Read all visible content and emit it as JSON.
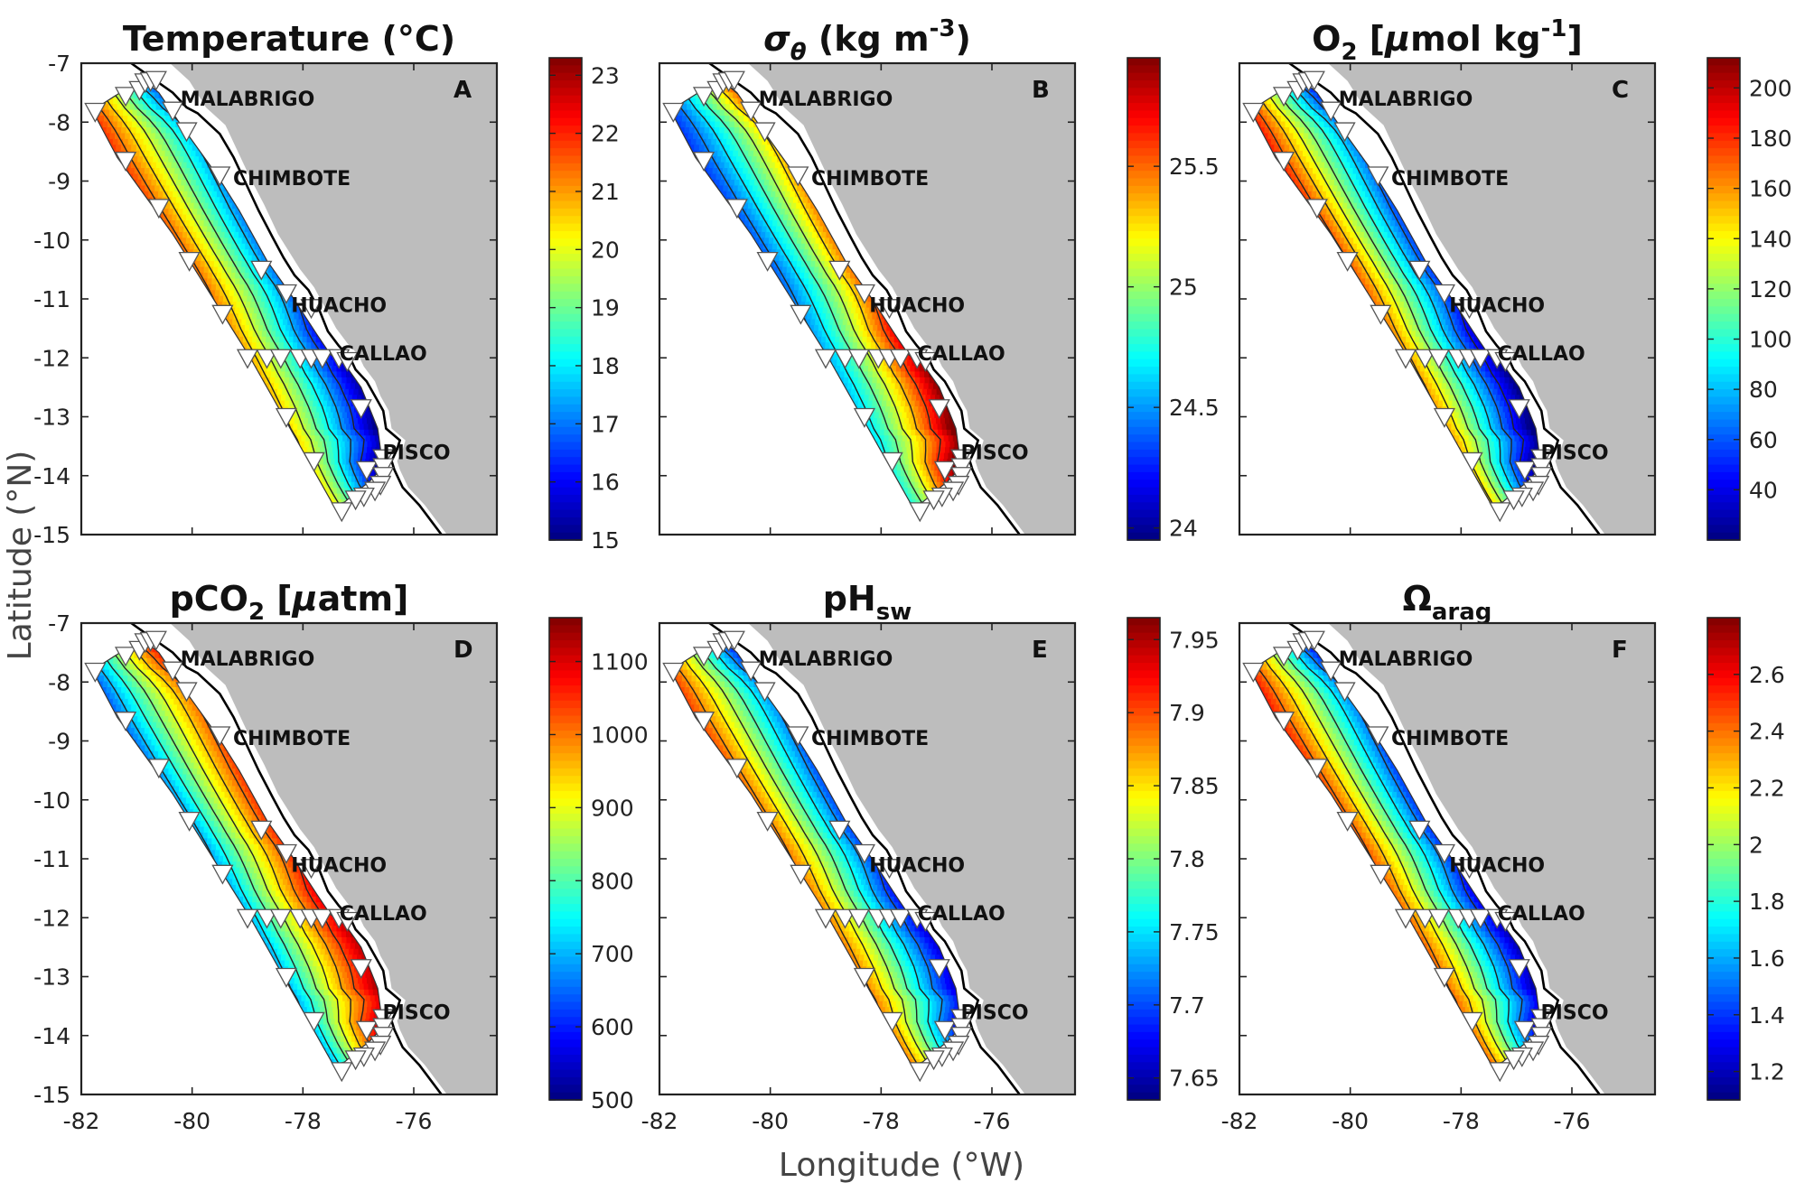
{
  "figure": {
    "xlabel": "Longitude (°W)",
    "ylabel": "Latitude (°N)"
  },
  "chart_data": [
    {
      "id": "A",
      "type": "heatmap",
      "letter": "A",
      "title": "Temperature (°C)",
      "title_parts": [
        {
          "t": "Temperature (°C)"
        }
      ],
      "xlim": [
        -82,
        -74.5
      ],
      "ylim": [
        -15,
        -7
      ],
      "xticks": [
        "-82",
        "-80",
        "-78",
        "-76"
      ],
      "yticks": [
        "-7",
        "-8",
        "-9",
        "-10",
        "-11",
        "-12",
        "-13",
        "-14",
        "-15"
      ],
      "colorbar": {
        "min": 15,
        "max": 23.3,
        "ticks": [
          "15",
          "16",
          "17",
          "18",
          "19",
          "20",
          "21",
          "22",
          "23"
        ],
        "tick_values": [
          15,
          16,
          17,
          18,
          19,
          20,
          21,
          22,
          23
        ]
      },
      "field": {
        "offshore": 22.5,
        "nearshore": 16,
        "south_shift": -2.5,
        "rbias": 0.1,
        "nlevels": 9
      },
      "cities": [
        "MALABRIGO",
        "CHIMBOTE",
        "HUACHO",
        "CALLAO",
        "PISCO"
      ]
    },
    {
      "id": "B",
      "type": "heatmap",
      "letter": "B",
      "title": "σθ (kg m-3)",
      "title_parts": [
        {
          "t": "σ",
          "italic": true
        },
        {
          "t": "θ",
          "italic": true,
          "sub": true
        },
        {
          "t": " (kg m"
        },
        {
          "t": "-3",
          "sup": true
        },
        {
          "t": ")"
        }
      ],
      "xlim": [
        -82,
        -74.5
      ],
      "ylim": [
        -15,
        -7
      ],
      "xticks": [
        "-82",
        "-80",
        "-78",
        "-76"
      ],
      "yticks": [
        "-7",
        "-8",
        "-9",
        "-10",
        "-11",
        "-12",
        "-13",
        "-14",
        "-15"
      ],
      "colorbar": {
        "min": 23.95,
        "max": 25.95,
        "ticks": [
          "24",
          "24.5",
          "25",
          "25.5"
        ],
        "tick_values": [
          24,
          24.5,
          25,
          25.5
        ]
      },
      "field": {
        "offshore": 24.2,
        "nearshore": 25.75,
        "south_shift": 0.7,
        "rbias": 0.3,
        "nlevels": 8
      },
      "cities": [
        "MALABRIGO",
        "CHIMBOTE",
        "HUACHO",
        "CALLAO",
        "PISCO"
      ]
    },
    {
      "id": "C",
      "type": "heatmap",
      "letter": "C",
      "title": "O2 [μmol kg-1]",
      "title_parts": [
        {
          "t": "O"
        },
        {
          "t": "2",
          "sub": true
        },
        {
          "t": " ["
        },
        {
          "t": "μ",
          "italic": true
        },
        {
          "t": "mol kg"
        },
        {
          "t": "-1",
          "sup": true
        },
        {
          "t": "]"
        }
      ],
      "xlim": [
        -82,
        -74.5
      ],
      "ylim": [
        -15,
        -7
      ],
      "xticks": [
        "-82",
        "-80",
        "-78",
        "-76"
      ],
      "yticks": [
        "-7",
        "-8",
        "-9",
        "-10",
        "-11",
        "-12",
        "-13",
        "-14",
        "-15"
      ],
      "colorbar": {
        "min": 20,
        "max": 212,
        "ticks": [
          "40",
          "60",
          "80",
          "100",
          "120",
          "140",
          "160",
          "180",
          "200"
        ],
        "tick_values": [
          40,
          60,
          80,
          100,
          120,
          140,
          160,
          180,
          200
        ]
      },
      "field": {
        "offshore": 205,
        "nearshore": 30,
        "south_shift": -50,
        "rbias": 0,
        "nlevels": 10
      },
      "cities": [
        "MALABRIGO",
        "CHIMBOTE",
        "HUACHO",
        "CALLAO",
        "PISCO"
      ]
    },
    {
      "id": "D",
      "type": "heatmap",
      "letter": "D",
      "title": "pCO2 [μatm]",
      "title_parts": [
        {
          "t": "pCO"
        },
        {
          "t": "2",
          "sub": true
        },
        {
          "t": " ["
        },
        {
          "t": "μ",
          "italic": true
        },
        {
          "t": "atm]"
        }
      ],
      "xlim": [
        -82,
        -74.5
      ],
      "ylim": [
        -15,
        -7
      ],
      "xticks": [
        "-82",
        "-80",
        "-78",
        "-76"
      ],
      "yticks": [
        "-7",
        "-8",
        "-9",
        "-10",
        "-11",
        "-12",
        "-13",
        "-14",
        "-15"
      ],
      "colorbar": {
        "min": 500,
        "max": 1160,
        "ticks": [
          "500",
          "600",
          "700",
          "800",
          "900",
          "1000",
          "1100"
        ],
        "tick_values": [
          500,
          600,
          700,
          800,
          900,
          1000,
          1100
        ]
      },
      "field": {
        "offshore": 560,
        "nearshore": 1120,
        "south_shift": 80,
        "rbias": -0.1,
        "nlevels": 9
      },
      "cities": [
        "MALABRIGO",
        "CHIMBOTE",
        "HUACHO",
        "CALLAO",
        "PISCO"
      ]
    },
    {
      "id": "E",
      "type": "heatmap",
      "letter": "E",
      "title": "pHsw",
      "title_parts": [
        {
          "t": "pH"
        },
        {
          "t": "sw",
          "sub": true
        }
      ],
      "xlim": [
        -82,
        -74.5
      ],
      "ylim": [
        -15,
        -7
      ],
      "xticks": [
        "-82",
        "-80",
        "-78",
        "-76"
      ],
      "yticks": [
        "-7",
        "-8",
        "-9",
        "-10",
        "-11",
        "-12",
        "-13",
        "-14",
        "-15"
      ],
      "colorbar": {
        "min": 7.635,
        "max": 7.965,
        "ticks": [
          "7.65",
          "7.7",
          "7.75",
          "7.8",
          "7.85",
          "7.9",
          "7.95"
        ],
        "tick_values": [
          7.65,
          7.7,
          7.75,
          7.8,
          7.85,
          7.9,
          7.95
        ]
      },
      "field": {
        "offshore": 7.93,
        "nearshore": 7.655,
        "south_shift": -0.03,
        "rbias": 0.1,
        "nlevels": 9
      },
      "cities": [
        "MALABRIGO",
        "CHIMBOTE",
        "HUACHO",
        "CALLAO",
        "PISCO"
      ]
    },
    {
      "id": "F",
      "type": "heatmap",
      "letter": "F",
      "title": "Ωarag",
      "title_parts": [
        {
          "t": "Ω"
        },
        {
          "t": "arag",
          "sub": true
        }
      ],
      "xlim": [
        -82,
        -74.5
      ],
      "ylim": [
        -15,
        -7
      ],
      "xticks": [
        "-82",
        "-80",
        "-78",
        "-76"
      ],
      "yticks": [
        "-7",
        "-8",
        "-9",
        "-10",
        "-11",
        "-12",
        "-13",
        "-14",
        "-15"
      ],
      "colorbar": {
        "min": 1.1,
        "max": 2.8,
        "ticks": [
          "1.2",
          "1.4",
          "1.6",
          "1.8",
          "2",
          "2.2",
          "2.4",
          "2.6"
        ],
        "tick_values": [
          1.2,
          1.4,
          1.6,
          1.8,
          2,
          2.2,
          2.4,
          2.6
        ]
      },
      "field": {
        "offshore": 2.7,
        "nearshore": 1.15,
        "south_shift": -0.2,
        "rbias": 0.1,
        "nlevels": 9
      },
      "cities": [
        "MALABRIGO",
        "CHIMBOTE",
        "HUACHO",
        "CALLAO",
        "PISCO"
      ]
    }
  ],
  "geo": {
    "coast": [
      [
        -81.1,
        -7
      ],
      [
        -80.8,
        -7.2
      ],
      [
        -80.35,
        -7.5
      ],
      [
        -80.1,
        -7.75
      ],
      [
        -79.9,
        -7.85
      ],
      [
        -79.5,
        -8.2
      ],
      [
        -79.25,
        -8.6
      ],
      [
        -79.05,
        -9
      ],
      [
        -78.8,
        -9.5
      ],
      [
        -78.55,
        -9.95
      ],
      [
        -78.35,
        -10.3
      ],
      [
        -78.15,
        -10.6
      ],
      [
        -77.9,
        -10.85
      ],
      [
        -77.7,
        -11.2
      ],
      [
        -77.55,
        -11.55
      ],
      [
        -77.35,
        -11.8
      ],
      [
        -77.15,
        -12
      ],
      [
        -77.05,
        -12.2
      ],
      [
        -76.85,
        -12.4
      ],
      [
        -76.7,
        -12.65
      ],
      [
        -76.55,
        -12.9
      ],
      [
        -76.5,
        -13.2
      ],
      [
        -76.25,
        -13.4
      ],
      [
        -76.3,
        -13.55
      ],
      [
        -76.4,
        -13.75
      ],
      [
        -76.35,
        -13.9
      ],
      [
        -76.2,
        -14.2
      ],
      [
        -75.9,
        -14.5
      ],
      [
        -75.7,
        -14.75
      ],
      [
        -75.5,
        -15
      ]
    ],
    "land": [
      [
        -80.4,
        -7
      ],
      [
        -80.05,
        -7.3
      ],
      [
        -79.75,
        -7.75
      ],
      [
        -79.4,
        -8.05
      ],
      [
        -79.2,
        -8.45
      ],
      [
        -78.95,
        -8.95
      ],
      [
        -78.7,
        -9.4
      ],
      [
        -78.45,
        -9.9
      ],
      [
        -78.25,
        -10.2
      ],
      [
        -78.05,
        -10.5
      ],
      [
        -77.8,
        -10.8
      ],
      [
        -77.6,
        -11.15
      ],
      [
        -77.4,
        -11.5
      ],
      [
        -77.2,
        -11.75
      ],
      [
        -77.0,
        -11.95
      ],
      [
        -76.9,
        -12.15
      ],
      [
        -76.7,
        -12.4
      ],
      [
        -76.6,
        -12.65
      ],
      [
        -76.45,
        -12.9
      ],
      [
        -76.4,
        -13.2
      ],
      [
        -76.15,
        -13.4
      ],
      [
        -76.2,
        -13.55
      ],
      [
        -76.3,
        -13.75
      ],
      [
        -76.25,
        -13.9
      ],
      [
        -76.1,
        -14.2
      ],
      [
        -75.8,
        -14.5
      ],
      [
        -75.6,
        -14.75
      ],
      [
        -75.4,
        -15
      ]
    ],
    "domain": [
      [
        -81.8,
        -7.8
      ],
      [
        -81.3,
        -7.5
      ],
      [
        -81.0,
        -7.4
      ],
      [
        -80.85,
        -7.3
      ],
      [
        -80.6,
        -7.5
      ],
      [
        -80.2,
        -8.05
      ],
      [
        -79.55,
        -8.9
      ],
      [
        -79.15,
        -9.5
      ],
      [
        -78.65,
        -10.35
      ],
      [
        -78.2,
        -10.95
      ],
      [
        -77.75,
        -11.6
      ],
      [
        -77.5,
        -11.95
      ],
      [
        -77.25,
        -12.1
      ],
      [
        -76.95,
        -12.5
      ],
      [
        -76.8,
        -12.85
      ],
      [
        -76.65,
        -13.2
      ],
      [
        -76.6,
        -13.55
      ],
      [
        -76.6,
        -13.9
      ],
      [
        -76.8,
        -14.1
      ],
      [
        -77.0,
        -14.25
      ],
      [
        -77.25,
        -14.45
      ],
      [
        -77.45,
        -14.5
      ],
      [
        -78.95,
        -12.0
      ],
      [
        -80.35,
        -9.9
      ],
      [
        -81.35,
        -8.6
      ]
    ],
    "stations": [
      [
        -81.75,
        -7.82
      ],
      [
        -81.2,
        -7.55
      ],
      [
        -80.95,
        -7.45
      ],
      [
        -80.85,
        -7.32
      ],
      [
        -80.75,
        -7.3
      ],
      [
        -80.65,
        -7.28
      ],
      [
        -80.35,
        -7.8
      ],
      [
        -81.2,
        -8.65
      ],
      [
        -80.1,
        -8.15
      ],
      [
        -80.6,
        -9.45
      ],
      [
        -79.5,
        -8.9
      ],
      [
        -80.05,
        -10.35
      ],
      [
        -78.75,
        -10.5
      ],
      [
        -79.45,
        -11.25
      ],
      [
        -78.3,
        -10.9
      ],
      [
        -77.85,
        -11.15
      ],
      [
        -79.0,
        -12.0
      ],
      [
        -78.65,
        -12.0
      ],
      [
        -78.4,
        -12.0
      ],
      [
        -78.05,
        -12.0
      ],
      [
        -77.85,
        -12.0
      ],
      [
        -77.65,
        -12.0
      ],
      [
        -77.35,
        -12.0
      ],
      [
        -77.2,
        -12.05
      ],
      [
        -78.3,
        -13.0
      ],
      [
        -76.95,
        -12.85
      ],
      [
        -77.8,
        -13.75
      ],
      [
        -76.85,
        -13.9
      ],
      [
        -76.55,
        -13.7
      ],
      [
        -76.55,
        -13.85
      ],
      [
        -76.55,
        -14.0
      ],
      [
        -76.6,
        -14.15
      ],
      [
        -76.7,
        -14.25
      ],
      [
        -76.9,
        -14.35
      ],
      [
        -77.05,
        -14.4
      ],
      [
        -77.3,
        -14.6
      ]
    ],
    "cities": [
      {
        "lon": -79.0,
        "lat": -7.6
      },
      {
        "lon": -78.2,
        "lat": -8.95
      },
      {
        "lon": -77.35,
        "lat": -11.1
      },
      {
        "lon": -76.55,
        "lat": -11.92
      },
      {
        "lon": -75.95,
        "lat": -13.6
      }
    ]
  }
}
